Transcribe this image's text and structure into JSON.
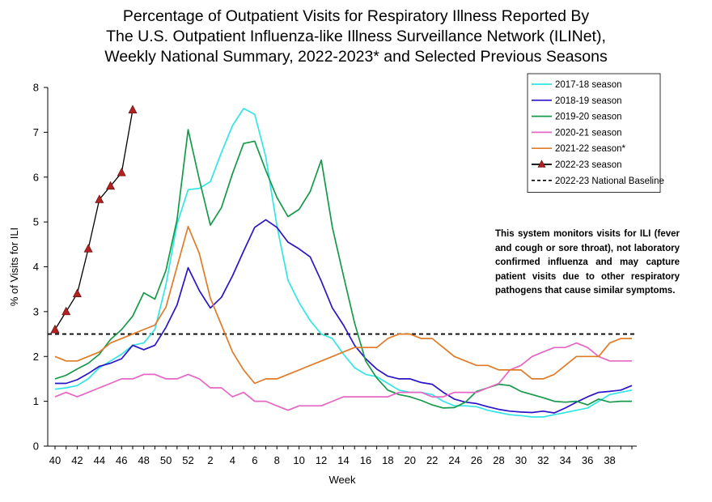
{
  "title_lines": [
    "Percentage of Outpatient Visits for Respiratory Illness Reported By",
    "The U.S. Outpatient Influenza-like Illness Surveillance Network (ILINet),",
    "Weekly National Summary, 2022-2023* and Selected Previous Seasons"
  ],
  "note": "This system monitors visits for ILI (fever and cough or sore throat), not laboratory confirmed influenza and may capture patient visits due to other respiratory pathogens that cause similar symptoms.",
  "chart_data": {
    "type": "line",
    "xlabel": "Week",
    "ylabel": "% of Visits for ILI",
    "ylim": [
      0,
      8
    ],
    "yticks": [
      0,
      1,
      2,
      3,
      4,
      5,
      6,
      7,
      8
    ],
    "x_index_range": [
      0,
      52
    ],
    "week_ticks": [
      "40",
      "42",
      "44",
      "46",
      "48",
      "50",
      "52",
      "2",
      "4",
      "6",
      "8",
      "10",
      "12",
      "14",
      "16",
      "18",
      "20",
      "22",
      "24",
      "26",
      "28",
      "30",
      "32",
      "34",
      "36",
      "38"
    ],
    "x_description": "x values are season-week indices: 0 = week 40, 12 = week 52, 13 = week 1, 52 = week 39",
    "legend_position": "top-right",
    "grid": false,
    "baseline": {
      "name": "2022-23 National Baseline",
      "value": 2.5,
      "color": "#000000"
    },
    "series": [
      {
        "name": "2017-18 season",
        "color": "#33E5E5",
        "x": [
          0,
          1,
          2,
          3,
          4,
          5,
          6,
          7,
          8,
          9,
          10,
          11,
          12,
          13,
          14,
          15,
          16,
          17,
          18,
          19,
          20,
          21,
          22,
          23,
          24,
          25,
          26,
          27,
          28,
          29,
          30,
          31,
          32,
          33,
          34,
          35,
          36,
          37,
          38,
          39,
          40,
          41,
          42,
          43,
          44,
          45,
          46,
          47,
          48,
          49,
          50,
          51,
          52
        ],
        "values": [
          1.27,
          1.3,
          1.35,
          1.5,
          1.75,
          1.9,
          2.05,
          2.25,
          2.3,
          2.6,
          3.6,
          4.95,
          5.72,
          5.75,
          5.9,
          6.55,
          7.15,
          7.53,
          7.4,
          6.45,
          4.92,
          3.7,
          3.2,
          2.8,
          2.5,
          2.4,
          2.05,
          1.75,
          1.6,
          1.55,
          1.4,
          1.25,
          1.2,
          1.2,
          1.15,
          1.0,
          0.9,
          0.9,
          0.88,
          0.8,
          0.75,
          0.7,
          0.68,
          0.65,
          0.65,
          0.7,
          0.75,
          0.8,
          0.85,
          1.0,
          1.15,
          1.2,
          1.25
        ]
      },
      {
        "name": "2018-19 season",
        "color": "#2A14C8",
        "x": [
          0,
          1,
          2,
          3,
          4,
          5,
          6,
          7,
          8,
          9,
          10,
          11,
          12,
          13,
          14,
          15,
          16,
          17,
          18,
          19,
          20,
          21,
          22,
          23,
          24,
          25,
          26,
          27,
          28,
          29,
          30,
          31,
          32,
          33,
          34,
          35,
          36,
          37,
          38,
          39,
          40,
          41,
          42,
          43,
          44,
          45,
          46,
          47,
          48,
          49,
          50,
          51,
          52
        ],
        "values": [
          1.4,
          1.4,
          1.48,
          1.62,
          1.78,
          1.85,
          1.95,
          2.25,
          2.15,
          2.25,
          2.65,
          3.15,
          3.98,
          3.47,
          3.08,
          3.32,
          3.8,
          4.35,
          4.88,
          5.05,
          4.88,
          4.55,
          4.4,
          4.22,
          3.68,
          3.08,
          2.7,
          2.25,
          1.95,
          1.72,
          1.56,
          1.5,
          1.5,
          1.42,
          1.38,
          1.2,
          1.05,
          0.98,
          0.95,
          0.88,
          0.82,
          0.78,
          0.76,
          0.75,
          0.78,
          0.74,
          0.85,
          0.98,
          1.1,
          1.2,
          1.22,
          1.25,
          1.35
        ]
      },
      {
        "name": "2019-20 season",
        "color": "#16994A",
        "x": [
          0,
          1,
          2,
          3,
          4,
          5,
          6,
          7,
          8,
          9,
          10,
          11,
          12,
          13,
          14,
          15,
          16,
          17,
          18,
          19,
          20,
          21,
          22,
          23,
          24,
          25,
          26,
          27,
          28,
          29,
          30,
          31,
          32,
          33,
          34,
          35,
          36,
          37,
          38,
          39,
          40,
          41,
          42,
          43,
          44,
          45,
          46,
          47,
          48,
          49,
          50,
          51,
          52
        ],
        "values": [
          1.5,
          1.58,
          1.72,
          1.85,
          2.05,
          2.38,
          2.6,
          2.9,
          3.42,
          3.28,
          3.92,
          5.05,
          7.06,
          5.95,
          4.93,
          5.32,
          6.08,
          6.75,
          6.8,
          6.15,
          5.55,
          5.12,
          5.28,
          5.68,
          6.38,
          4.88,
          3.8,
          2.75,
          1.9,
          1.52,
          1.25,
          1.15,
          1.1,
          1.02,
          0.92,
          0.85,
          0.86,
          0.98,
          1.22,
          1.3,
          1.38,
          1.35,
          1.22,
          1.15,
          1.08,
          1.0,
          0.98,
          1.0,
          0.92,
          1.05,
          0.98,
          1.0,
          1.0
        ]
      },
      {
        "name": "2020-21 season",
        "color": "#E667C4",
        "x": [
          0,
          1,
          2,
          3,
          4,
          5,
          6,
          7,
          8,
          9,
          10,
          11,
          12,
          13,
          14,
          15,
          16,
          17,
          18,
          19,
          20,
          21,
          22,
          23,
          24,
          25,
          26,
          27,
          28,
          29,
          30,
          31,
          32,
          33,
          34,
          35,
          36,
          37,
          38,
          39,
          40,
          41,
          42,
          43,
          44,
          45,
          46,
          47,
          48,
          49,
          50,
          51,
          52
        ],
        "values": [
          1.1,
          1.2,
          1.1,
          1.2,
          1.3,
          1.4,
          1.5,
          1.5,
          1.6,
          1.6,
          1.5,
          1.5,
          1.6,
          1.5,
          1.3,
          1.3,
          1.1,
          1.2,
          1.0,
          1.0,
          0.9,
          0.8,
          0.9,
          0.9,
          0.9,
          1.0,
          1.1,
          1.1,
          1.1,
          1.1,
          1.1,
          1.2,
          1.2,
          1.2,
          1.1,
          1.1,
          1.2,
          1.2,
          1.2,
          1.3,
          1.4,
          1.7,
          1.8,
          2.0,
          2.1,
          2.2,
          2.2,
          2.3,
          2.2,
          2.0,
          1.9,
          1.9,
          1.9
        ]
      },
      {
        "name": "2021-22 season*",
        "color": "#E07B28",
        "x": [
          0,
          1,
          2,
          3,
          4,
          5,
          6,
          7,
          8,
          9,
          10,
          11,
          12,
          13,
          14,
          15,
          16,
          17,
          18,
          19,
          20,
          21,
          22,
          23,
          24,
          25,
          26,
          27,
          28,
          29,
          30,
          31,
          32,
          33,
          34,
          35,
          36,
          37,
          38,
          39,
          40,
          41,
          42,
          43,
          44,
          45,
          46,
          47,
          48,
          49,
          50,
          51,
          52
        ],
        "values": [
          2.0,
          1.9,
          1.9,
          2.0,
          2.1,
          2.3,
          2.4,
          2.5,
          2.6,
          2.7,
          3.1,
          4.0,
          4.9,
          4.3,
          3.3,
          2.7,
          2.1,
          1.7,
          1.4,
          1.5,
          1.5,
          1.6,
          1.7,
          1.8,
          1.9,
          2.0,
          2.1,
          2.2,
          2.2,
          2.2,
          2.4,
          2.5,
          2.5,
          2.4,
          2.4,
          2.2,
          2.0,
          1.9,
          1.8,
          1.8,
          1.7,
          1.7,
          1.7,
          1.5,
          1.5,
          1.6,
          1.8,
          2.0,
          2.0,
          2.0,
          2.3,
          2.4,
          2.4
        ]
      },
      {
        "name": "2022-23 season",
        "color": "#000000",
        "marker": "triangle",
        "marker_color": "#B22222",
        "x": [
          0,
          1,
          2,
          3,
          4,
          5,
          6,
          7
        ],
        "values": [
          2.6,
          3.0,
          3.4,
          4.4,
          5.5,
          5.8,
          6.1,
          7.5
        ]
      }
    ]
  }
}
